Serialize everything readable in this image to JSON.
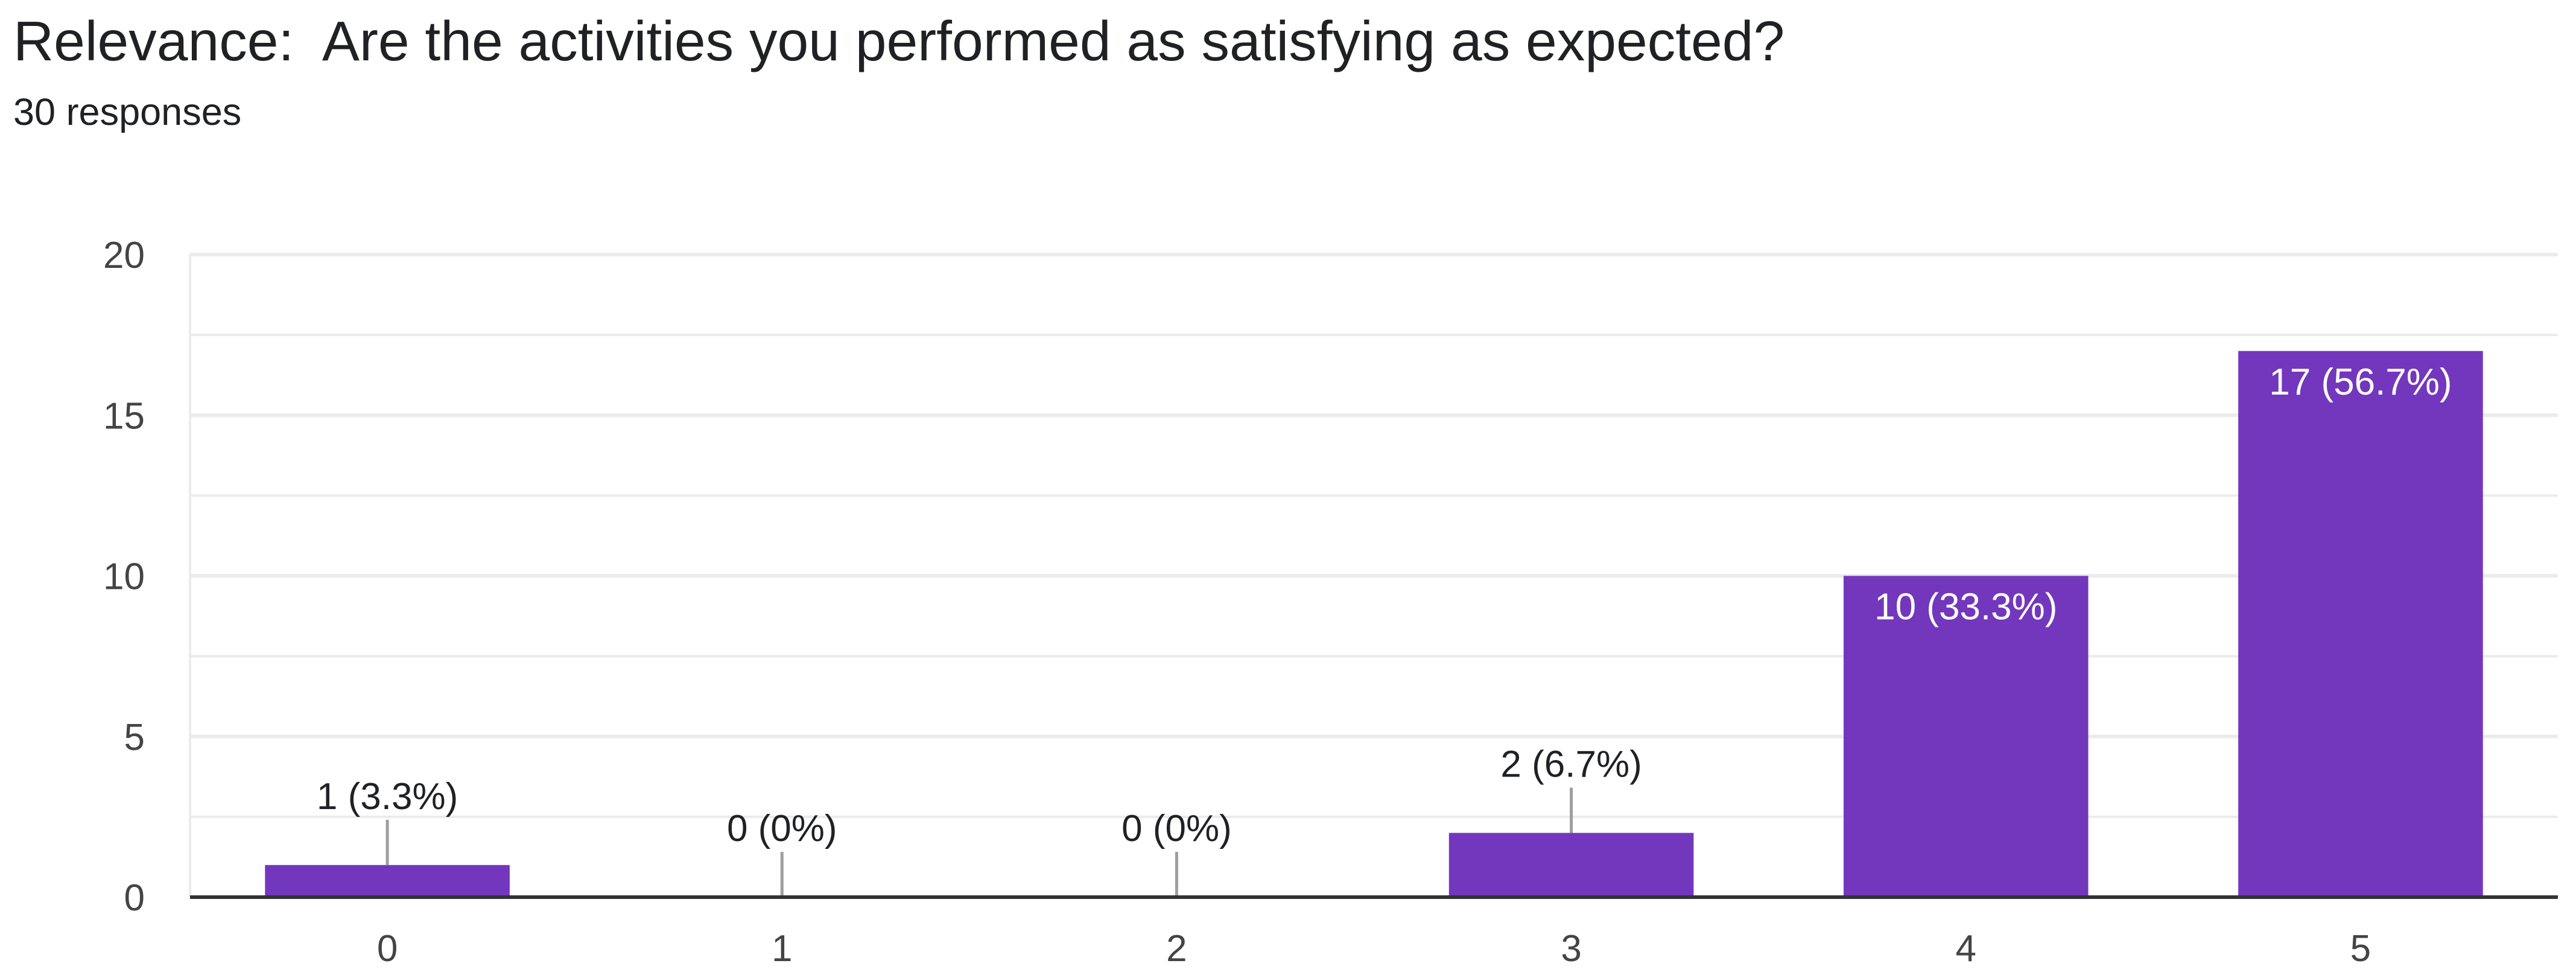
{
  "question": {
    "title": "Relevance:  Are the activities you performed as satisfying as expected?",
    "responses_label": "30 responses"
  },
  "colors": {
    "bar": "#7337bd",
    "grid": "#ebebeb",
    "axis": "#333333",
    "text": "#202124",
    "tick": "#444444",
    "leader": "#9e9e9e"
  },
  "chart_data": {
    "type": "bar",
    "categories": [
      "0",
      "1",
      "2",
      "3",
      "4",
      "5"
    ],
    "values": [
      1,
      0,
      0,
      2,
      10,
      17
    ],
    "data_labels": [
      "1 (3.3%)",
      "0 (0%)",
      "0 (0%)",
      "2 (6.7%)",
      "10 (33.3%)",
      "17 (56.7%)"
    ],
    "ylim": [
      0,
      20
    ],
    "yticks": [
      "0",
      "5",
      "10",
      "15",
      "20"
    ],
    "minor_gridlines": true,
    "xlabel": "",
    "ylabel": ""
  }
}
